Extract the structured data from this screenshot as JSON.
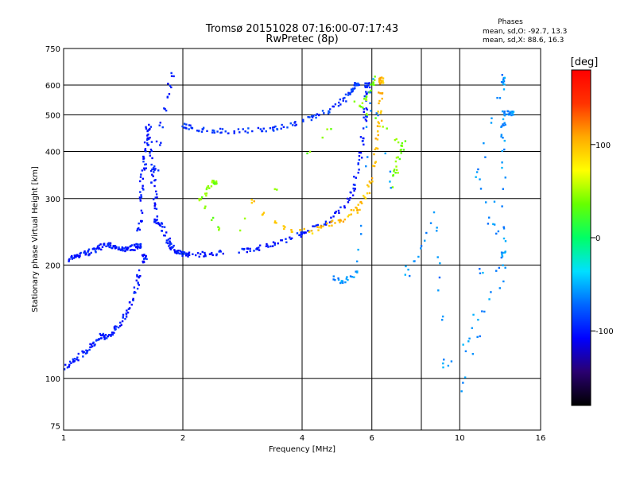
{
  "chart_data": {
    "type": "scatter",
    "title": "Tromsø 20151028 07:16:00-07:17:43",
    "subtitle": "RwPretec (8p)",
    "xlabel": "Frequency [MHz]",
    "ylabel": "Stationary phase Virtual Height [km]",
    "x_scale": "log",
    "y_scale": "log",
    "xlim": [
      1,
      16
    ],
    "ylim": [
      73,
      750
    ],
    "x_ticks": [
      1,
      2,
      4,
      6,
      10,
      16
    ],
    "x_gridlines": [
      2,
      4,
      6,
      8,
      10
    ],
    "y_ticks": [
      75,
      100,
      200,
      300,
      400,
      500,
      600,
      750
    ],
    "y_gridlines": [
      100,
      200,
      300,
      400,
      500,
      600
    ],
    "grid": true,
    "phase_box": {
      "title": "Phases",
      "line_o": "mean, sd,O: -92.7, 13.3",
      "line_x": "mean, sd,X:  88.6, 16.3"
    },
    "colorbar": {
      "label": "[deg]",
      "range": [
        -180,
        180
      ],
      "ticks": [
        100,
        0,
        -100
      ],
      "colormap": [
        "#000000",
        "#2a0070",
        "#0000ff",
        "#0066ff",
        "#00e0ff",
        "#00ff66",
        "#66ff00",
        "#ffff00",
        "#ffaa00",
        "#ff3300",
        "#ff0000"
      ]
    },
    "series": [
      {
        "points": [
          [
            1.02,
            205
          ],
          [
            1.06,
            210
          ],
          [
            1.1,
            212
          ],
          [
            1.15,
            215
          ],
          [
            1.2,
            220
          ],
          [
            1.25,
            224
          ],
          [
            1.3,
            226
          ],
          [
            1.35,
            224
          ],
          [
            1.4,
            221
          ],
          [
            1.45,
            220
          ],
          [
            1.5,
            222
          ],
          [
            1.55,
            225
          ]
        ],
        "phase": -100
      },
      {
        "points": [
          [
            1.55,
            240
          ],
          [
            1.57,
            280
          ],
          [
            1.58,
            330
          ],
          [
            1.6,
            380
          ],
          [
            1.62,
            420
          ],
          [
            1.64,
            470
          ],
          [
            1.66,
            400
          ],
          [
            1.68,
            350
          ],
          [
            1.7,
            300
          ],
          [
            1.72,
            260
          ]
        ],
        "phase": -100
      },
      {
        "points": [
          [
            1.72,
            360
          ],
          [
            1.74,
            420
          ],
          [
            1.77,
            470
          ],
          [
            1.8,
            520
          ],
          [
            1.83,
            560
          ],
          [
            1.86,
            600
          ],
          [
            1.88,
            640
          ]
        ],
        "phase": -95
      },
      {
        "points": [
          [
            1.75,
            260
          ],
          [
            1.8,
            240
          ],
          [
            1.85,
            228
          ],
          [
            1.9,
            220
          ],
          [
            1.95,
            216
          ],
          [
            2.0,
            214
          ],
          [
            2.1,
            213
          ],
          [
            2.3,
            214
          ],
          [
            2.6,
            216
          ],
          [
            3.0,
            220
          ],
          [
            3.3,
            225
          ],
          [
            3.6,
            232
          ],
          [
            4.0,
            242
          ],
          [
            4.3,
            250
          ],
          [
            4.7,
            262
          ],
          [
            5.1,
            285
          ],
          [
            5.4,
            320
          ],
          [
            5.6,
            380
          ],
          [
            5.7,
            450
          ],
          [
            5.8,
            520
          ],
          [
            5.85,
            600
          ]
        ],
        "phase": -100
      },
      {
        "points": [
          [
            2.0,
            470
          ],
          [
            2.1,
            460
          ],
          [
            2.3,
            455
          ],
          [
            2.6,
            452
          ],
          [
            3.0,
            455
          ],
          [
            3.4,
            460
          ],
          [
            3.8,
            470
          ],
          [
            4.2,
            490
          ],
          [
            4.6,
            510
          ],
          [
            5.0,
            540
          ],
          [
            5.3,
            570
          ],
          [
            5.5,
            600
          ]
        ],
        "phase": -90
      },
      {
        "points": [
          [
            1.0,
            105
          ],
          [
            1.05,
            110
          ],
          [
            1.1,
            115
          ],
          [
            1.15,
            120
          ],
          [
            1.2,
            125
          ],
          [
            1.25,
            130
          ],
          [
            1.3,
            128
          ],
          [
            1.35,
            135
          ],
          [
            1.4,
            140
          ],
          [
            1.45,
            150
          ],
          [
            1.5,
            165
          ],
          [
            1.55,
            185
          ],
          [
            1.6,
            210
          ]
        ],
        "phase": -100
      },
      {
        "points": [
          [
            3.0,
            295
          ],
          [
            3.2,
            272
          ],
          [
            3.4,
            260
          ],
          [
            3.6,
            252
          ],
          [
            3.8,
            248
          ],
          [
            4.0,
            246
          ],
          [
            4.2,
            246
          ]
        ],
        "phase": 95
      },
      {
        "points": [
          [
            4.4,
            250
          ],
          [
            4.8,
            258
          ],
          [
            5.2,
            268
          ],
          [
            5.6,
            285
          ],
          [
            5.9,
            320
          ],
          [
            6.1,
            380
          ],
          [
            6.25,
            460
          ],
          [
            6.3,
            540
          ],
          [
            6.35,
            620
          ]
        ],
        "phase": 100
      },
      {
        "points": [
          [
            6.8,
            320
          ],
          [
            7.0,
            380
          ],
          [
            7.2,
            420
          ],
          [
            5.6,
            520
          ],
          [
            5.8,
            560
          ],
          [
            6.3,
            650
          ],
          [
            2.6,
            230
          ],
          [
            2.2,
            300
          ],
          [
            2.4,
            330
          ]
        ],
        "phase": 40
      },
      {
        "points": [
          [
            4.8,
            185
          ],
          [
            5.1,
            180
          ],
          [
            5.5,
            190
          ],
          [
            6.0,
            640
          ],
          [
            7.4,
            185
          ],
          [
            8.8,
            280
          ],
          [
            9.1,
            105
          ],
          [
            12.9,
            180
          ],
          [
            12.9,
            310
          ],
          [
            12.9,
            600
          ],
          [
            12.9,
            640
          ],
          [
            11.1,
            340
          ],
          [
            12.9,
            215
          ],
          [
            10.0,
            90
          ],
          [
            12.9,
            420
          ],
          [
            12.9,
            505
          ],
          [
            13.5,
            505
          ]
        ],
        "phase": -60
      }
    ]
  }
}
